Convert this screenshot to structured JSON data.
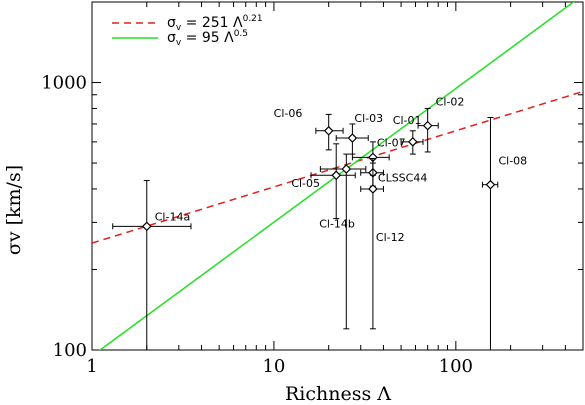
{
  "chart_data": {
    "type": "scatter",
    "x_scale": "log",
    "y_scale": "log",
    "xlim": [
      1,
      500
    ],
    "ylim": [
      100,
      2000
    ],
    "xlabel": "Richness  Λ",
    "ylabel": "σv  [km/s]",
    "x_ticks": [
      {
        "value": 1,
        "label": "1"
      },
      {
        "value": 10,
        "label": "10"
      },
      {
        "value": 100,
        "label": "100"
      }
    ],
    "y_ticks": [
      {
        "value": 100,
        "label": "100"
      },
      {
        "value": 1000,
        "label": "1000"
      }
    ],
    "legend": {
      "position": "top-left",
      "entries": [
        {
          "prefix": "σ",
          "sub": "v",
          "text": " = 251 Λ",
          "sup": "0.21",
          "style": "dashed",
          "color": "#e0201e"
        },
        {
          "prefix": "σ",
          "sub": "v",
          "text": " = 95 Λ",
          "sup": "0.5",
          "style": "solid",
          "color": "#22e022"
        }
      ]
    },
    "fits": [
      {
        "coef": 251,
        "exponent": 0.21,
        "color": "#e0201e",
        "style": "dashed"
      },
      {
        "coef": 95,
        "exponent": 0.5,
        "color": "#22e022",
        "style": "solid"
      }
    ],
    "points": [
      {
        "label": "Cl-14a",
        "x": 2,
        "y": 290,
        "xerr": [
          1.3,
          3.5
        ],
        "yerr": [
          100,
          430
        ],
        "label_dx": 8,
        "label_dy": -6
      },
      {
        "label": "Cl-06",
        "x": 20,
        "y": 660,
        "xerr": [
          17,
          24
        ],
        "yerr": [
          560,
          760
        ],
        "label_dx": -55,
        "label_dy": -14
      },
      {
        "label": "Cl-03",
        "x": 27,
        "y": 620,
        "xerr": [
          22,
          33
        ],
        "yerr": [
          540,
          700
        ],
        "label_dx": 2,
        "label_dy": -16
      },
      {
        "label": "Cl-01",
        "x": 58,
        "y": 600,
        "xerr": [
          50,
          66
        ],
        "yerr": [
          540,
          660
        ],
        "label_dx": -20,
        "label_dy": -18
      },
      {
        "label": "Cl-02",
        "x": 70,
        "y": 690,
        "xerr": [
          62,
          80
        ],
        "yerr": [
          550,
          800
        ],
        "label_dx": 8,
        "label_dy": -20
      },
      {
        "label": "Cl-07",
        "x": 35,
        "y": 525,
        "xerr": [
          27,
          43
        ],
        "yerr": [
          450,
          600
        ],
        "label_dx": 4,
        "label_dy": -11
      },
      {
        "label": "CLSSC44",
        "x": 35,
        "y": 460,
        "xerr": [
          30,
          40
        ],
        "yerr": [
          410,
          520
        ],
        "label_dx": 5,
        "label_dy": 9
      },
      {
        "label": "Cl-05",
        "x": 25,
        "y": 475,
        "xerr": [
          18,
          32
        ],
        "yerr": [
          120,
          540
        ],
        "label_dx": -55,
        "label_dy": 18
      },
      {
        "label": "Cl-14b",
        "x": 22,
        "y": 450,
        "xerr": [
          16,
          28
        ],
        "yerr": [
          310,
          590
        ],
        "label_dx": -17,
        "label_dy": 52
      },
      {
        "label": "Cl-12",
        "x": 35,
        "y": 400,
        "xerr": [
          30,
          40
        ],
        "yerr": [
          120,
          500
        ],
        "label_dx": 3,
        "label_dy": 52
      },
      {
        "label": "Cl-08",
        "x": 155,
        "y": 415,
        "xerr": [
          140,
          170
        ],
        "yerr": [
          100,
          740
        ],
        "label_dx": 8,
        "label_dy": -20
      }
    ]
  }
}
